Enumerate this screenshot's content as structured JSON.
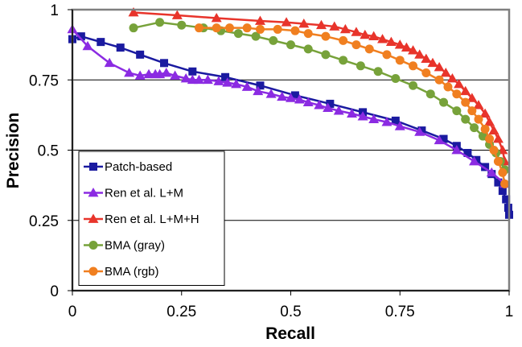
{
  "chart_data": {
    "type": "line",
    "title": "",
    "xlabel": "Recall",
    "ylabel": "Precision",
    "xlim": [
      0,
      1
    ],
    "ylim": [
      0,
      1
    ],
    "xticks": [
      0,
      0.25,
      0.5,
      0.75,
      1
    ],
    "yticks": [
      0,
      0.25,
      0.5,
      0.75,
      1
    ],
    "x_tick_labels": [
      "0",
      "0.25",
      "0.5",
      "0.75",
      "1"
    ],
    "y_tick_labels": [
      "0",
      "0.25",
      "0.5",
      "0.75",
      "1"
    ],
    "grid": "horizontal",
    "legend_position": "bottom-left",
    "series": [
      {
        "name": "Patch-based",
        "color": "#1a1aa0",
        "marker": "square",
        "x": [
          0.0,
          0.02,
          0.065,
          0.11,
          0.155,
          0.21,
          0.275,
          0.35,
          0.43,
          0.51,
          0.59,
          0.665,
          0.74,
          0.8,
          0.85,
          0.88,
          0.905,
          0.925,
          0.945,
          0.96,
          0.975,
          0.985,
          0.993,
          0.998,
          1.0
        ],
        "y": [
          0.895,
          0.905,
          0.885,
          0.865,
          0.84,
          0.81,
          0.78,
          0.76,
          0.73,
          0.695,
          0.665,
          0.635,
          0.605,
          0.57,
          0.54,
          0.515,
          0.49,
          0.465,
          0.44,
          0.415,
          0.385,
          0.355,
          0.325,
          0.295,
          0.27
        ]
      },
      {
        "name": "Ren et al. L+M",
        "color": "#8b2be2",
        "marker": "triangle",
        "x": [
          0.0,
          0.035,
          0.085,
          0.13,
          0.155,
          0.175,
          0.19,
          0.2,
          0.215,
          0.235,
          0.26,
          0.275,
          0.29,
          0.31,
          0.335,
          0.355,
          0.375,
          0.4,
          0.425,
          0.455,
          0.48,
          0.5,
          0.52,
          0.54,
          0.565,
          0.585,
          0.61,
          0.64,
          0.665,
          0.69,
          0.72,
          0.75,
          0.795,
          0.84,
          0.88,
          0.92,
          0.96,
          0.99
        ],
        "y": [
          0.93,
          0.87,
          0.81,
          0.775,
          0.765,
          0.77,
          0.77,
          0.77,
          0.775,
          0.765,
          0.755,
          0.75,
          0.75,
          0.75,
          0.745,
          0.74,
          0.735,
          0.725,
          0.71,
          0.7,
          0.69,
          0.685,
          0.68,
          0.67,
          0.66,
          0.65,
          0.64,
          0.63,
          0.62,
          0.61,
          0.6,
          0.585,
          0.565,
          0.535,
          0.5,
          0.46,
          0.42,
          0.38
        ]
      },
      {
        "name": "Ren et al. L+M+H",
        "color": "#e8342b",
        "marker": "triangle",
        "x": [
          0.14,
          0.24,
          0.33,
          0.43,
          0.49,
          0.53,
          0.57,
          0.6,
          0.625,
          0.65,
          0.67,
          0.69,
          0.71,
          0.73,
          0.75,
          0.765,
          0.78,
          0.795,
          0.81,
          0.825,
          0.84,
          0.855,
          0.87,
          0.885,
          0.9,
          0.915,
          0.93,
          0.945,
          0.955,
          0.965,
          0.975,
          0.985,
          0.99
        ],
        "y": [
          0.99,
          0.98,
          0.97,
          0.96,
          0.955,
          0.95,
          0.945,
          0.94,
          0.93,
          0.92,
          0.91,
          0.905,
          0.895,
          0.885,
          0.875,
          0.865,
          0.855,
          0.84,
          0.825,
          0.81,
          0.795,
          0.775,
          0.755,
          0.735,
          0.71,
          0.685,
          0.66,
          0.63,
          0.6,
          0.57,
          0.54,
          0.5,
          0.46
        ]
      },
      {
        "name": "BMA (gray)",
        "color": "#77a23a",
        "marker": "circle",
        "x": [
          0.14,
          0.2,
          0.25,
          0.3,
          0.34,
          0.38,
          0.42,
          0.46,
          0.5,
          0.54,
          0.58,
          0.62,
          0.66,
          0.7,
          0.74,
          0.78,
          0.82,
          0.85,
          0.88,
          0.9,
          0.92,
          0.94,
          0.955,
          0.97,
          0.98,
          0.99
        ],
        "y": [
          0.935,
          0.955,
          0.945,
          0.935,
          0.925,
          0.915,
          0.905,
          0.89,
          0.875,
          0.86,
          0.84,
          0.82,
          0.8,
          0.78,
          0.755,
          0.73,
          0.7,
          0.67,
          0.64,
          0.61,
          0.58,
          0.55,
          0.52,
          0.49,
          0.46,
          0.43
        ]
      },
      {
        "name": "BMA (rgb)",
        "color": "#f07f20",
        "marker": "circle",
        "x": [
          0.29,
          0.33,
          0.36,
          0.4,
          0.43,
          0.47,
          0.51,
          0.54,
          0.58,
          0.62,
          0.65,
          0.68,
          0.72,
          0.75,
          0.78,
          0.81,
          0.84,
          0.86,
          0.88,
          0.9,
          0.915,
          0.93,
          0.945,
          0.955,
          0.965,
          0.975,
          0.985,
          0.99
        ],
        "y": [
          0.935,
          0.935,
          0.935,
          0.935,
          0.93,
          0.93,
          0.925,
          0.915,
          0.905,
          0.89,
          0.875,
          0.86,
          0.84,
          0.82,
          0.8,
          0.775,
          0.75,
          0.725,
          0.7,
          0.67,
          0.64,
          0.61,
          0.575,
          0.54,
          0.5,
          0.46,
          0.42,
          0.38
        ]
      }
    ]
  }
}
